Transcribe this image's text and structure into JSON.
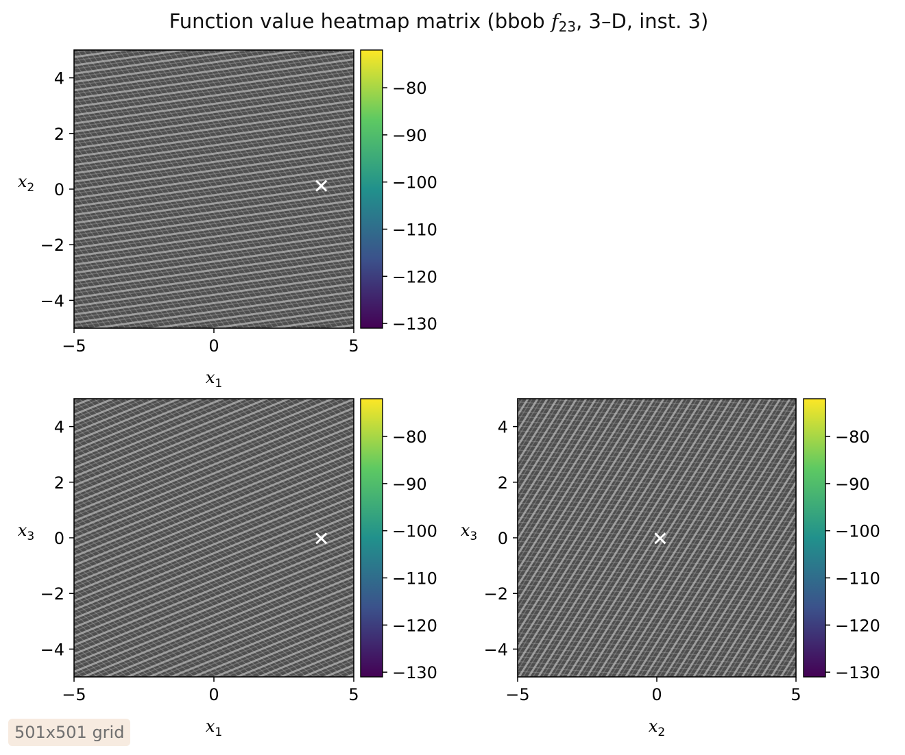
{
  "title": {
    "text_before": "Function value heatmap matrix (bbob ",
    "func_letter": "f",
    "func_sub": "23",
    "text_after": ", 3–D, inst. 3)"
  },
  "grid_badge": "501x501 grid",
  "colormap": {
    "name": "viridis",
    "stops": [
      "#440154",
      "#3b528b",
      "#21918c",
      "#5ec962",
      "#fde725"
    ]
  },
  "chart_data": [
    {
      "type": "heatmap",
      "xlabel": {
        "letter": "x",
        "sub": "1"
      },
      "ylabel": {
        "letter": "x",
        "sub": "2"
      },
      "xlim": [
        -5,
        5
      ],
      "ylim": [
        -5,
        5
      ],
      "xticks": [
        -5,
        0,
        5
      ],
      "yticks": [
        -4,
        -2,
        0,
        2,
        4
      ],
      "optimum": [
        3.84,
        0.12
      ],
      "stripe_angle_deg": -8,
      "colorbar": {
        "range": [
          -131,
          -72
        ],
        "ticks": [
          -80,
          -90,
          -100,
          -110,
          -120,
          -130
        ]
      }
    },
    {
      "type": "heatmap",
      "xlabel": {
        "letter": "x",
        "sub": "1"
      },
      "ylabel": {
        "letter": "x",
        "sub": "3"
      },
      "xlim": [
        -5,
        5
      ],
      "ylim": [
        -5,
        5
      ],
      "xticks": [
        -5,
        0,
        5
      ],
      "yticks": [
        -4,
        -2,
        0,
        2,
        4
      ],
      "optimum": [
        3.84,
        -0.02
      ],
      "stripe_angle_deg": -22,
      "colorbar": {
        "range": [
          -131,
          -72
        ],
        "ticks": [
          -80,
          -90,
          -100,
          -110,
          -120,
          -130
        ]
      }
    },
    {
      "type": "heatmap",
      "xlabel": {
        "letter": "x",
        "sub": "2"
      },
      "ylabel": {
        "letter": "x",
        "sub": "3"
      },
      "xlim": [
        -5,
        5
      ],
      "ylim": [
        -5,
        5
      ],
      "xticks": [
        -5,
        0,
        5
      ],
      "yticks": [
        -4,
        -2,
        0,
        2,
        4
      ],
      "optimum": [
        0.12,
        -0.02
      ],
      "stripe_angle_deg": -58,
      "colorbar": {
        "range": [
          -131,
          -72
        ],
        "ticks": [
          -80,
          -90,
          -100,
          -110,
          -120,
          -130
        ]
      }
    }
  ]
}
